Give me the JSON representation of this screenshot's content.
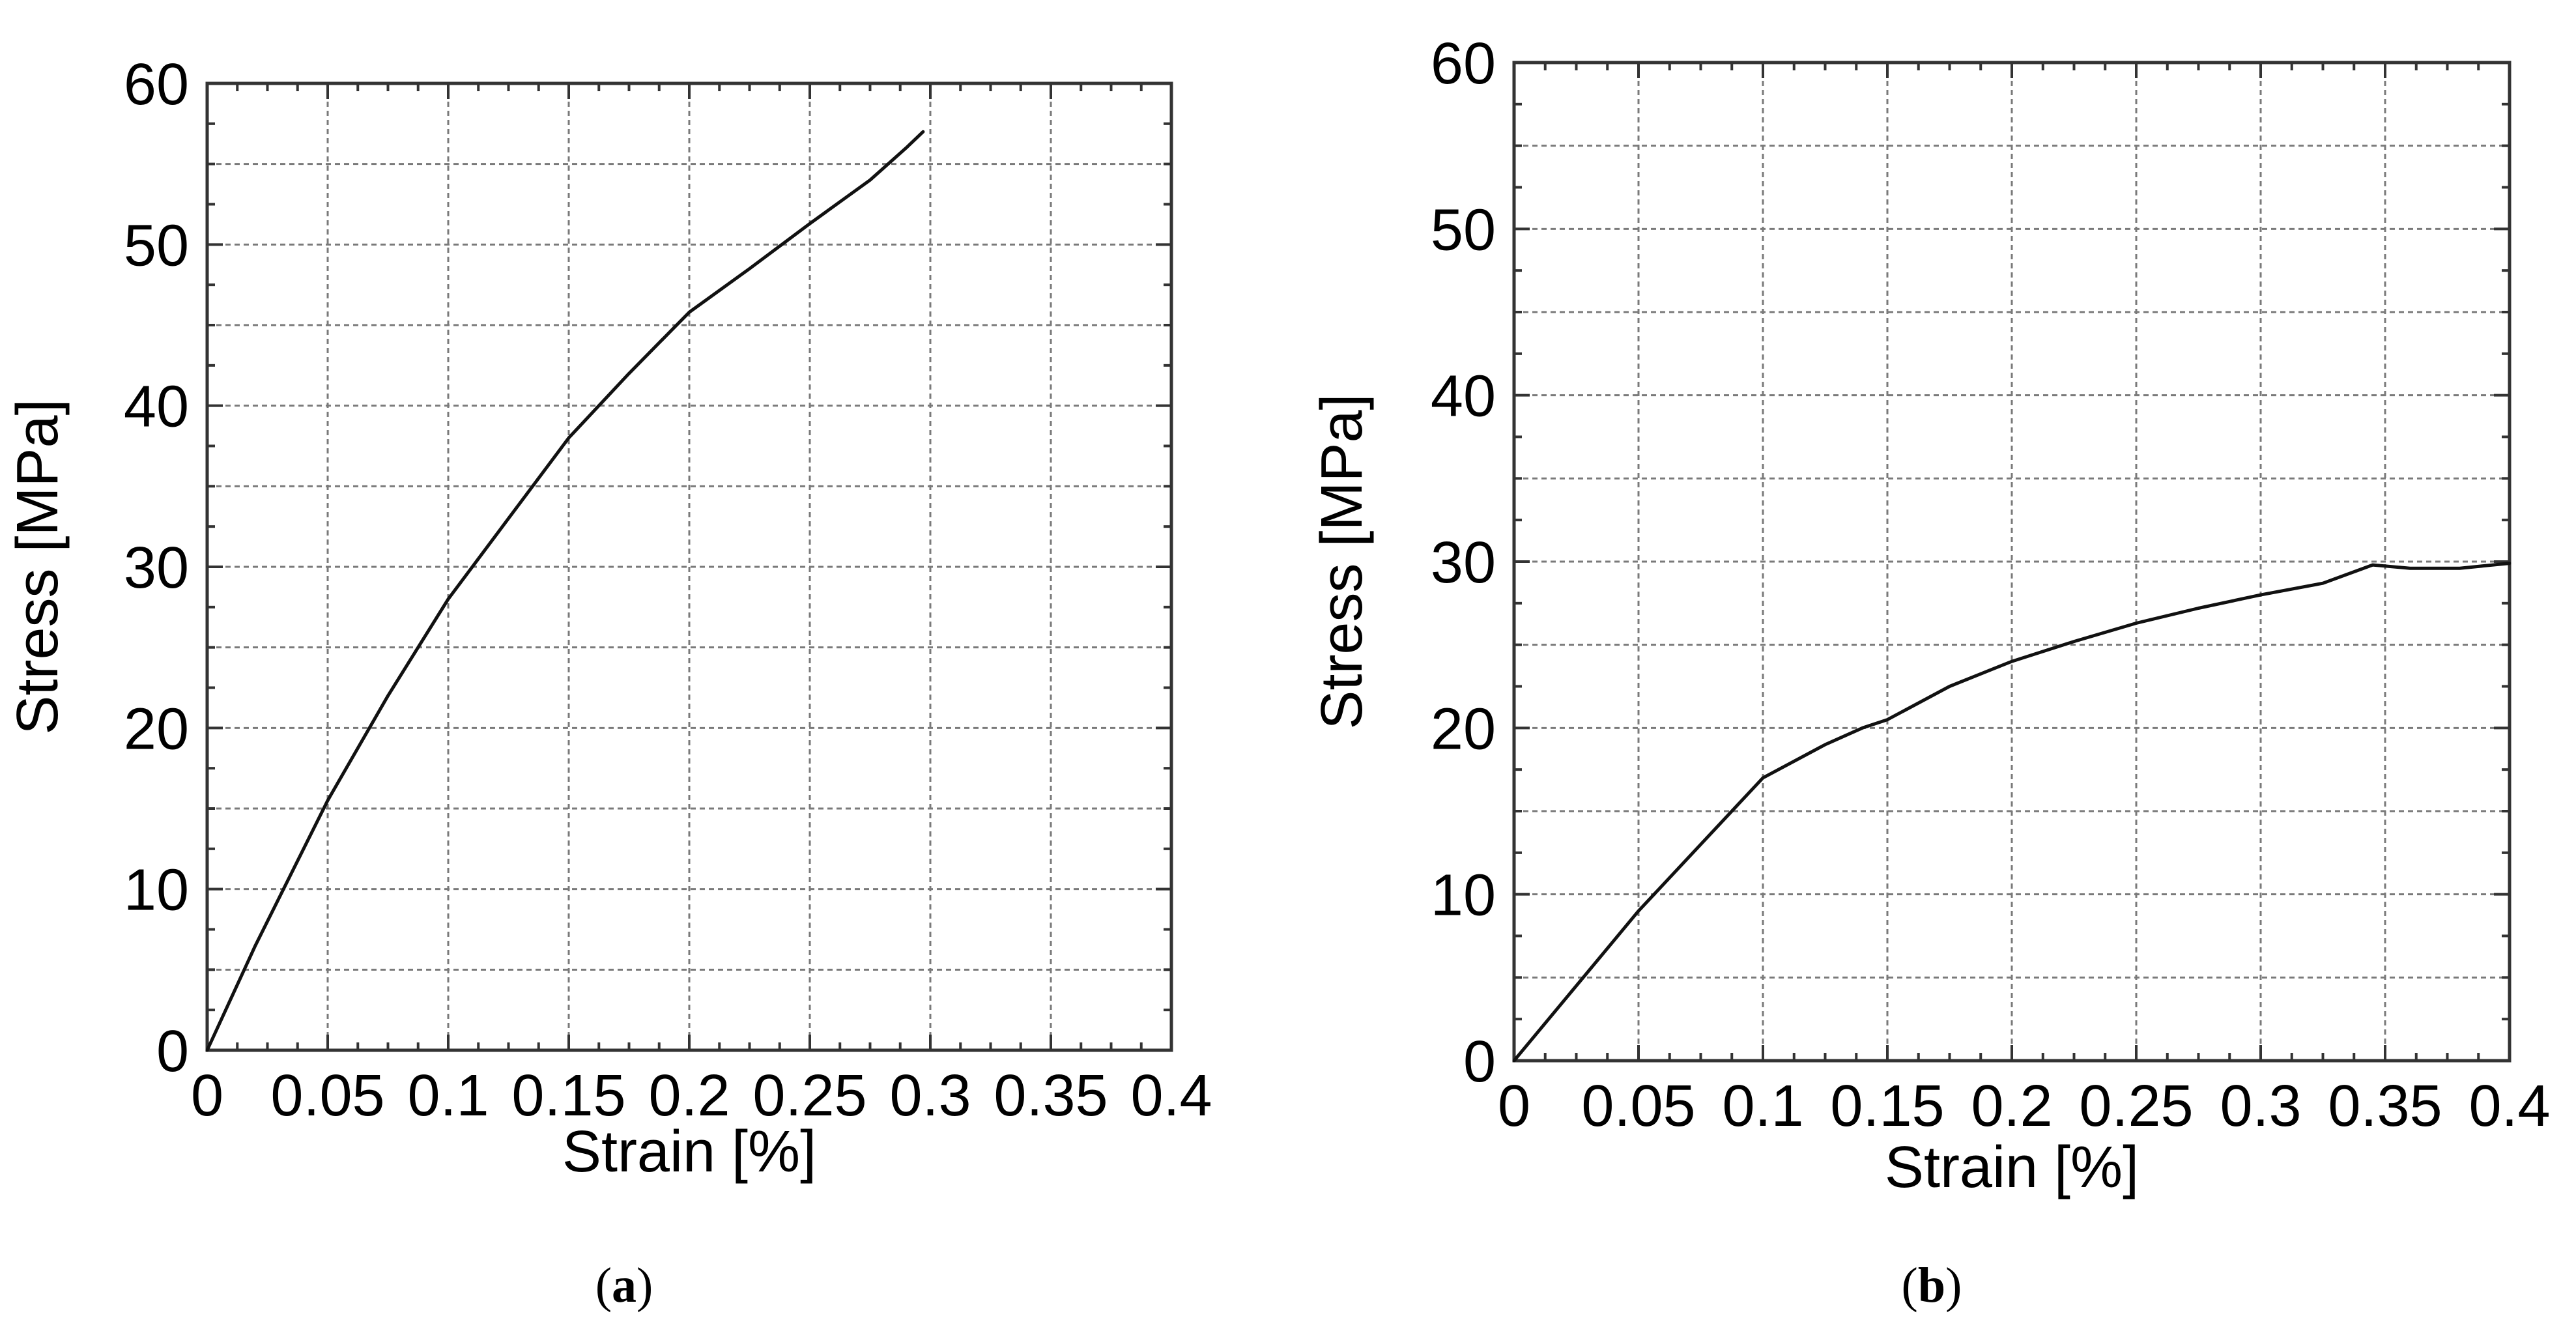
{
  "chart_data": [
    {
      "type": "line",
      "xlabel": "Strain [%]",
      "ylabel": "Stress [MPa]",
      "xlim": [
        0,
        0.4
      ],
      "ylim": [
        0,
        60
      ],
      "x_ticks": [
        "0",
        "0.05",
        "0.1",
        "0.15",
        "0.2",
        "0.25",
        "0.3",
        "0.35",
        "0.4"
      ],
      "y_ticks": [
        "0",
        "10",
        "20",
        "30",
        "40",
        "50",
        "60"
      ],
      "grid": true,
      "series": [
        {
          "x": [
            0,
            0.02,
            0.05,
            0.075,
            0.1,
            0.125,
            0.15,
            0.175,
            0.2,
            0.225,
            0.25,
            0.275,
            0.29,
            0.297
          ],
          "values": [
            0,
            6.5,
            15.5,
            22,
            28,
            33,
            38,
            42,
            45.8,
            48.5,
            51.3,
            54,
            56,
            57
          ]
        }
      ],
      "caption": "(a)"
    },
    {
      "type": "line",
      "xlabel": "Strain [%]",
      "ylabel": "Stress [MPa]",
      "xlim": [
        0,
        0.4
      ],
      "ylim": [
        0,
        60
      ],
      "x_ticks": [
        "0",
        "0.05",
        "0.1",
        "0.15",
        "0.2",
        "0.25",
        "0.3",
        "0.35",
        "0.4"
      ],
      "y_ticks": [
        "0",
        "10",
        "20",
        "30",
        "40",
        "50",
        "60"
      ],
      "grid": true,
      "series": [
        {
          "x": [
            0,
            0.025,
            0.05,
            0.075,
            0.1,
            0.125,
            0.14,
            0.15,
            0.175,
            0.2,
            0.225,
            0.25,
            0.275,
            0.3,
            0.325,
            0.345,
            0.36,
            0.38,
            0.4
          ],
          "values": [
            0,
            4.5,
            9,
            13,
            17,
            19,
            20,
            20.5,
            22.5,
            24,
            25.2,
            26.3,
            27.2,
            28,
            28.7,
            29.8,
            29.6,
            29.6,
            29.9
          ]
        }
      ],
      "caption": "(b)"
    }
  ]
}
